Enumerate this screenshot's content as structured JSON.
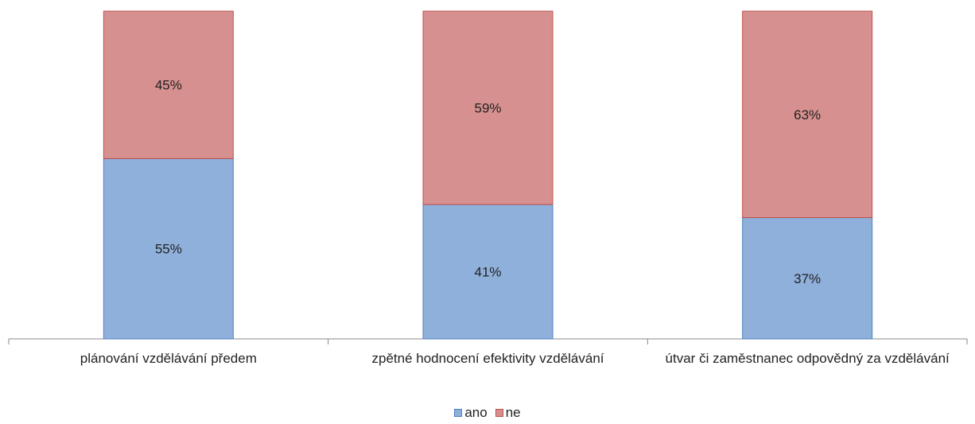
{
  "chart_data": {
    "type": "bar",
    "stacked": true,
    "categories": [
      "plánování vzdělávání předem",
      "zpětné hodnocení efektivity vzdělávání",
      "útvar či zaměstnanec odpovědný za vzdělávání"
    ],
    "series": [
      {
        "name": "ano",
        "values": [
          55,
          41,
          37
        ],
        "labels": [
          "55%",
          "41%",
          "37%"
        ],
        "color": "#8eb0da",
        "border": "#4f81bd"
      },
      {
        "name": "ne",
        "values": [
          45,
          59,
          63
        ],
        "labels": [
          "45%",
          "59%",
          "63%"
        ],
        "color": "#d6908f",
        "border": "#c0504d"
      }
    ],
    "ylim": [
      0,
      100
    ],
    "grid": false,
    "legend": "bottom"
  },
  "legend": {
    "ano": "ano",
    "ne": "ne"
  }
}
